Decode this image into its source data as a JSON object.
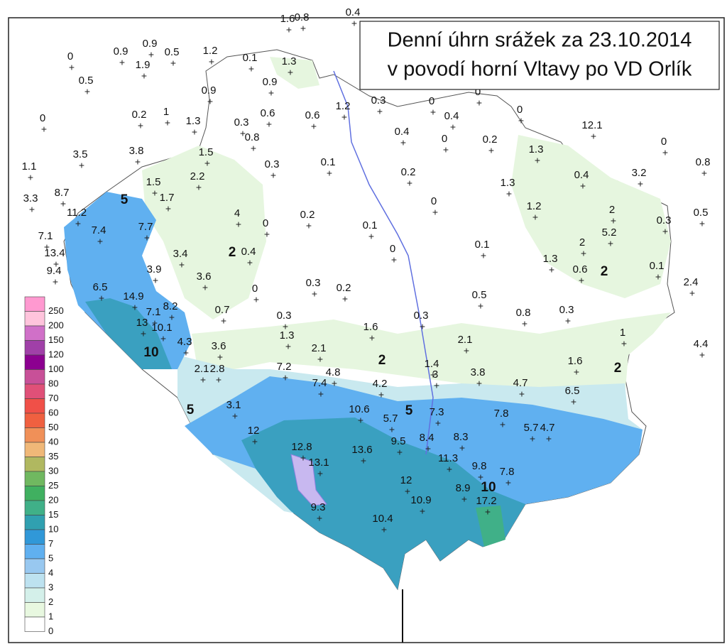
{
  "title": {
    "line1": "Denní úhrn srážek za 23.10.2014",
    "line2": "v povodí horní Vltavy po VD Orlík"
  },
  "legend": [
    {
      "label": 250,
      "color": "#ff99d0"
    },
    {
      "label": 200,
      "color": "#ffc4dc"
    },
    {
      "label": 150,
      "color": "#d070c8"
    },
    {
      "label": 120,
      "color": "#a040a8"
    },
    {
      "label": 100,
      "color": "#8c0090"
    },
    {
      "label": 80,
      "color": "#c85098"
    },
    {
      "label": 70,
      "color": "#e05078"
    },
    {
      "label": 60,
      "color": "#f05048"
    },
    {
      "label": 50,
      "color": "#f06040"
    },
    {
      "label": 40,
      "color": "#f09058"
    },
    {
      "label": 35,
      "color": "#f0b878"
    },
    {
      "label": 30,
      "color": "#b0b860"
    },
    {
      "label": 25,
      "color": "#70b860"
    },
    {
      "label": 20,
      "color": "#40b060"
    },
    {
      "label": 15,
      "color": "#40b088"
    },
    {
      "label": 10,
      "color": "#30a0b0"
    },
    {
      "label": 7,
      "color": "#3098d8"
    },
    {
      "label": 5,
      "color": "#60b0f0"
    },
    {
      "label": 4,
      "color": "#98c8f0"
    },
    {
      "label": 3,
      "color": "#bde2f0"
    },
    {
      "label": 2,
      "color": "#d4f0ea"
    },
    {
      "label": 1,
      "color": "#e8f8e0"
    },
    {
      "label": 0,
      "color": "#ffffff"
    }
  ],
  "stations": [
    1.6,
    0.8,
    0.4,
    0,
    0.9,
    0.9,
    1.9,
    0.5,
    1.2,
    0.5,
    0.1,
    1.3,
    0.9,
    0.9,
    0,
    0.2,
    1,
    1.3,
    0.3,
    0.6,
    0.8,
    0.6,
    1.2,
    0.3,
    0,
    0,
    0.4,
    0,
    0,
    0.4,
    0.2,
    12.1,
    0,
    0.8,
    1.1,
    3.5,
    3.8,
    1.5,
    0.3,
    0.1,
    0.2,
    1.3,
    0.4,
    3.2,
    3.3,
    8.7,
    1.5,
    2.2,
    1.7,
    1.3,
    1.2,
    0,
    11.2,
    4,
    0.2,
    0.1,
    0,
    2,
    0.3,
    0.5,
    7.1,
    7.4,
    7.7,
    13.4,
    0.4,
    0,
    0.1,
    2,
    5.2,
    1.3,
    0.6,
    0.1,
    9.4,
    3.4,
    3.9,
    3.6,
    0,
    0.3,
    0.2,
    0.5,
    0.8,
    0.3,
    2.4,
    6.5,
    14.9,
    7.1,
    8.2,
    13,
    10.1,
    0.7,
    0.3,
    1.3,
    1.6,
    0.3,
    2.1,
    1,
    4.4,
    4.3,
    3.6,
    2.1,
    2.1,
    2.8,
    7.2,
    4.8,
    1.4,
    1.6,
    3,
    7.4,
    4.2,
    3.8,
    4.7,
    6.5,
    3.1,
    10.6,
    5.7,
    7.3,
    7.8,
    5.7,
    4.7,
    12,
    9.5,
    8.4,
    8.3,
    12.8,
    13.6,
    13.1,
    11.3,
    9.8,
    7.8,
    12,
    8.9,
    17.2,
    10.9,
    9.3,
    10.4
  ],
  "contour_labels": [
    5,
    2,
    10,
    2,
    5,
    5,
    2,
    2,
    10
  ]
}
